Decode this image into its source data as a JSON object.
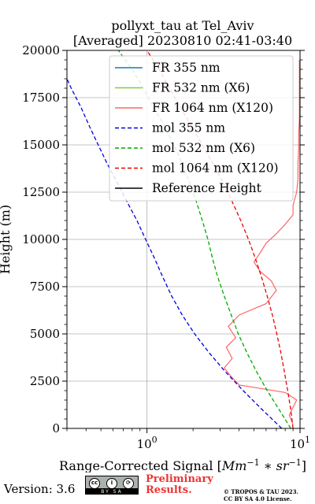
{
  "chart_data": {
    "type": "line",
    "title": "pollyxt_tau at Tel_Aviv",
    "subtitle": "[Averaged] 20230810 02:41-03:40",
    "xlabel": "Range-Corrected Signal [Mm^-1 * sr^-1]",
    "ylabel": "Height (m)",
    "xscale": "log",
    "xlim": [
      0.3,
      10
    ],
    "ylim": [
      0,
      20000
    ],
    "x_ticks": [
      1,
      10
    ],
    "x_tick_labels": [
      "10^0",
      "10^1"
    ],
    "y_ticks": [
      0,
      2500,
      5000,
      7500,
      10000,
      12500,
      15000,
      17500,
      20000
    ],
    "y_tick_labels": [
      "0",
      "2500",
      "5000",
      "7500",
      "10000",
      "12500",
      "15000",
      "17500",
      "20000"
    ],
    "grid": true,
    "legend_position": "top-right",
    "series": [
      {
        "name": "FR 355 nm",
        "color": "#1f77b4",
        "style": "solid",
        "points": []
      },
      {
        "name": "FR 532 nm (X6)",
        "color": "#80d040",
        "style": "solid",
        "points": []
      },
      {
        "name": "FR 1064 nm (X120)",
        "color": "#ff6666",
        "style": "solid",
        "points": [
          [
            9.0,
            200
          ],
          [
            8.5,
            700
          ],
          [
            9.5,
            1500
          ],
          [
            8.0,
            1900
          ],
          [
            4.0,
            2300
          ],
          [
            3.5,
            2800
          ],
          [
            3.2,
            3200
          ],
          [
            3.6,
            3700
          ],
          [
            3.3,
            4300
          ],
          [
            3.8,
            4800
          ],
          [
            3.4,
            5400
          ],
          [
            4.0,
            6000
          ],
          [
            6.0,
            6600
          ],
          [
            7.0,
            7300
          ],
          [
            6.5,
            7800
          ],
          [
            5.5,
            8300
          ],
          [
            5.0,
            8800
          ],
          [
            5.5,
            9300
          ],
          [
            6.0,
            9800
          ],
          [
            7.0,
            10300
          ],
          [
            8.0,
            10800
          ],
          [
            9.0,
            11300
          ],
          [
            9.0,
            11800
          ],
          [
            9.5,
            12500
          ],
          [
            9.7,
            13200
          ],
          [
            9.7,
            14000
          ],
          [
            9.8,
            14800
          ],
          [
            9.8,
            15600
          ],
          [
            9.9,
            16400
          ],
          [
            9.9,
            17200
          ],
          [
            9.9,
            18000
          ],
          [
            9.9,
            18800
          ],
          [
            9.9,
            19500
          ]
        ]
      },
      {
        "name": "mol 355 nm",
        "color": "#0000dd",
        "style": "dashed",
        "points": [
          [
            7.6,
            0
          ],
          [
            5.65,
            1000
          ],
          [
            4.25,
            2000
          ],
          [
            3.25,
            3000
          ],
          [
            2.55,
            4000
          ],
          [
            2.05,
            5000
          ],
          [
            1.7,
            6000
          ],
          [
            1.45,
            7000
          ],
          [
            1.27,
            8000
          ],
          [
            1.12,
            9000
          ],
          [
            0.98,
            10000
          ],
          [
            0.86,
            11000
          ],
          [
            0.74,
            12000
          ],
          [
            0.64,
            13000
          ],
          [
            0.55,
            14000
          ],
          [
            0.48,
            15000
          ],
          [
            0.42,
            16000
          ],
          [
            0.37,
            17000
          ],
          [
            0.32,
            18000
          ],
          [
            0.3,
            18500
          ]
        ]
      },
      {
        "name": "mol 532 nm (X6)",
        "color": "#00aa00",
        "style": "dashed",
        "points": [
          [
            8.7,
            0
          ],
          [
            7.3,
            1000
          ],
          [
            6.1,
            2000
          ],
          [
            5.2,
            3000
          ],
          [
            4.5,
            4000
          ],
          [
            3.95,
            5000
          ],
          [
            3.55,
            6000
          ],
          [
            3.2,
            7000
          ],
          [
            2.9,
            8000
          ],
          [
            2.68,
            9000
          ],
          [
            2.5,
            10000
          ],
          [
            2.3,
            11000
          ],
          [
            2.1,
            12000
          ],
          [
            1.9,
            13000
          ],
          [
            1.7,
            14000
          ],
          [
            1.5,
            15000
          ],
          [
            1.3,
            16000
          ],
          [
            1.1,
            17000
          ],
          [
            0.95,
            18000
          ],
          [
            0.8,
            19000
          ],
          [
            0.65,
            20000
          ]
        ]
      },
      {
        "name": "mol 1064 nm (X120)",
        "color": "#ee0000",
        "style": "dashed",
        "points": [
          [
            9.0,
            0
          ],
          [
            8.7,
            1000
          ],
          [
            8.3,
            2000
          ],
          [
            7.9,
            3000
          ],
          [
            7.5,
            4000
          ],
          [
            7.05,
            5000
          ],
          [
            6.6,
            6000
          ],
          [
            6.1,
            7000
          ],
          [
            5.6,
            8000
          ],
          [
            5.1,
            9000
          ],
          [
            4.6,
            10000
          ],
          [
            4.1,
            11000
          ],
          [
            3.6,
            12000
          ],
          [
            3.15,
            13000
          ],
          [
            2.7,
            14000
          ],
          [
            2.3,
            15000
          ],
          [
            1.95,
            16000
          ],
          [
            1.65,
            17000
          ],
          [
            1.4,
            18000
          ],
          [
            1.2,
            19000
          ],
          [
            1.0,
            20000
          ]
        ]
      },
      {
        "name": "Reference Height",
        "color": "#000000",
        "style": "solid",
        "points": []
      }
    ]
  },
  "footer": {
    "version": "Version: 3.6",
    "license_badge_icons": [
      "cc-icon",
      "attribution-icon",
      "share-alike-icon"
    ],
    "license_badge_text": "BY   SA",
    "preliminary_line1": "Preliminary",
    "preliminary_line2": "Results.",
    "copyright_line1": "© TROPOS & TAU 2023.",
    "copyright_line2": "CC BY SA 4.0 License."
  }
}
